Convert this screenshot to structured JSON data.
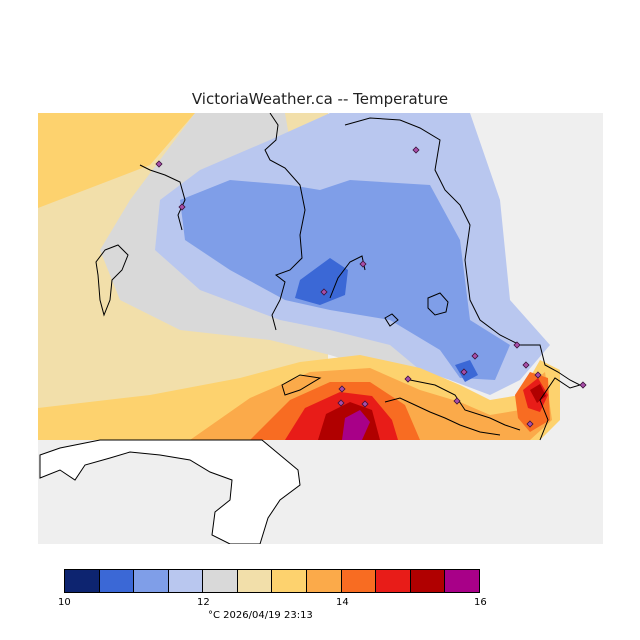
{
  "title": "VictoriaWeather.ca -- Temperature",
  "legend": {
    "colors": [
      "#0d2470",
      "#3b68d6",
      "#7f9ee8",
      "#b9c7ef",
      "#d9d9d9",
      "#f2dfaa",
      "#fdd26e",
      "#fbaa4a",
      "#f86c22",
      "#e81c18",
      "#b00000",
      "#a80088"
    ],
    "ticks": [
      "10",
      "12",
      "14",
      "16"
    ],
    "caption": "°C  2026/04/19 23:13"
  },
  "map": {
    "background": "#efefef",
    "land": "#ffffff",
    "station_marker": "#a84ea8"
  }
}
